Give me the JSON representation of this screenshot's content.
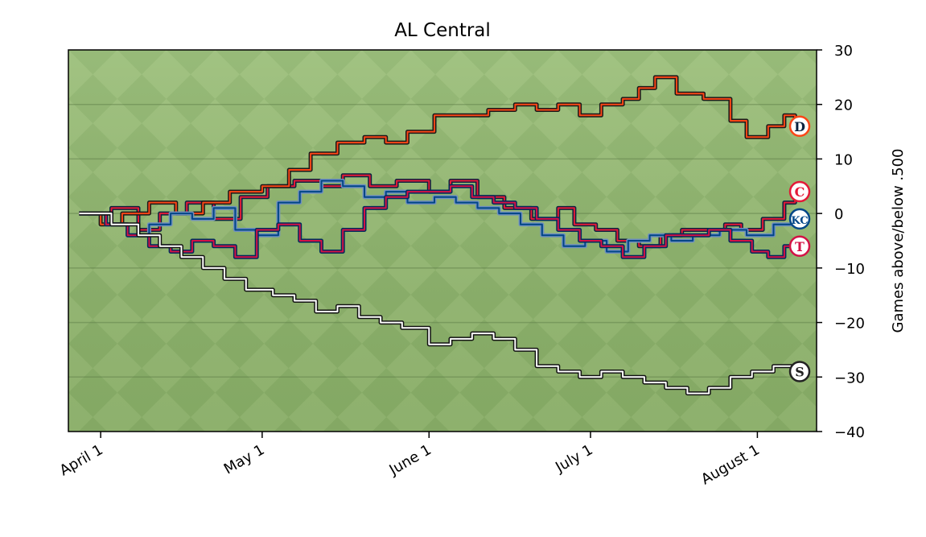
{
  "chart_data": {
    "type": "line",
    "title": "AL Central",
    "xlabel": "",
    "ylabel": "Games above/below .500",
    "ylim": [
      -40,
      30
    ],
    "xlim": [
      "2024-03-26",
      "2024-08-12"
    ],
    "y_axis_side": "right",
    "grid": "horizontal",
    "background": "outfield-grass",
    "legend": "none",
    "x_ticks": [
      {
        "date": "2024-04-01",
        "label": "April  1"
      },
      {
        "date": "2024-05-01",
        "label": "May  1"
      },
      {
        "date": "2024-06-01",
        "label": "June  1"
      },
      {
        "date": "2024-07-01",
        "label": "July  1"
      },
      {
        "date": "2024-08-01",
        "label": "August  1"
      }
    ],
    "y_ticks": [
      30,
      20,
      10,
      0,
      -10,
      -20,
      -30,
      -40
    ],
    "y_tick_labels": [
      "30",
      "20",
      "10",
      "0",
      "−10",
      "−20",
      "−30",
      "−40"
    ],
    "series": [
      {
        "team": "CLE",
        "logo_text": "C",
        "color": "#e31937",
        "outline": "#0c2340",
        "points": [
          [
            "2024-03-28",
            0
          ],
          [
            "2024-04-03",
            1
          ],
          [
            "2024-04-08",
            -3
          ],
          [
            "2024-04-12",
            0
          ],
          [
            "2024-04-17",
            2
          ],
          [
            "2024-04-22",
            -1
          ],
          [
            "2024-04-27",
            3
          ],
          [
            "2024-05-02",
            5
          ],
          [
            "2024-05-07",
            6
          ],
          [
            "2024-05-12",
            5
          ],
          [
            "2024-05-16",
            7
          ],
          [
            "2024-05-21",
            5
          ],
          [
            "2024-05-26",
            6
          ],
          [
            "2024-06-01",
            4
          ],
          [
            "2024-06-05",
            6
          ],
          [
            "2024-06-10",
            3
          ],
          [
            "2024-06-15",
            1
          ],
          [
            "2024-06-20",
            -1
          ],
          [
            "2024-06-25",
            1
          ],
          [
            "2024-06-28",
            -2
          ],
          [
            "2024-07-02",
            -3
          ],
          [
            "2024-07-06",
            -5
          ],
          [
            "2024-07-10",
            -6
          ],
          [
            "2024-07-14",
            -4
          ],
          [
            "2024-07-18",
            -3
          ],
          [
            "2024-07-22",
            -3
          ],
          [
            "2024-07-26",
            -2
          ],
          [
            "2024-07-29",
            -3
          ],
          [
            "2024-08-02",
            -1
          ],
          [
            "2024-08-06",
            2
          ],
          [
            "2024-08-08",
            4
          ]
        ]
      },
      {
        "team": "DET",
        "logo_text": "D",
        "color": "#fa4616",
        "outline": "#1a1a1a",
        "points": [
          [
            "2024-03-28",
            0
          ],
          [
            "2024-04-01",
            -2
          ],
          [
            "2024-04-05",
            0
          ],
          [
            "2024-04-10",
            2
          ],
          [
            "2024-04-15",
            0
          ],
          [
            "2024-04-20",
            2
          ],
          [
            "2024-04-25",
            4
          ],
          [
            "2024-05-01",
            5
          ],
          [
            "2024-05-06",
            8
          ],
          [
            "2024-05-10",
            11
          ],
          [
            "2024-05-15",
            13
          ],
          [
            "2024-05-20",
            14
          ],
          [
            "2024-05-24",
            13
          ],
          [
            "2024-05-28",
            15
          ],
          [
            "2024-06-02",
            18
          ],
          [
            "2024-06-07",
            18
          ],
          [
            "2024-06-12",
            19
          ],
          [
            "2024-06-17",
            20
          ],
          [
            "2024-06-21",
            19
          ],
          [
            "2024-06-25",
            20
          ],
          [
            "2024-06-29",
            18
          ],
          [
            "2024-07-03",
            20
          ],
          [
            "2024-07-07",
            21
          ],
          [
            "2024-07-10",
            23
          ],
          [
            "2024-07-13",
            25
          ],
          [
            "2024-07-17",
            22
          ],
          [
            "2024-07-22",
            21
          ],
          [
            "2024-07-27",
            17
          ],
          [
            "2024-07-30",
            14
          ],
          [
            "2024-08-03",
            16
          ],
          [
            "2024-08-06",
            18
          ],
          [
            "2024-08-08",
            16
          ]
        ]
      },
      {
        "team": "KC",
        "logo_text": "KC",
        "color": "#004687",
        "outline": "#6f8fbf",
        "points": [
          [
            "2024-03-28",
            0
          ],
          [
            "2024-04-02",
            -2
          ],
          [
            "2024-04-06",
            -4
          ],
          [
            "2024-04-10",
            -2
          ],
          [
            "2024-04-14",
            0
          ],
          [
            "2024-04-18",
            -1
          ],
          [
            "2024-04-22",
            1
          ],
          [
            "2024-04-26",
            -3
          ],
          [
            "2024-04-30",
            -4
          ],
          [
            "2024-05-04",
            2
          ],
          [
            "2024-05-08",
            4
          ],
          [
            "2024-05-12",
            6
          ],
          [
            "2024-05-16",
            5
          ],
          [
            "2024-05-20",
            3
          ],
          [
            "2024-05-24",
            4
          ],
          [
            "2024-05-28",
            2
          ],
          [
            "2024-06-02",
            3
          ],
          [
            "2024-06-06",
            2
          ],
          [
            "2024-06-10",
            1
          ],
          [
            "2024-06-14",
            0
          ],
          [
            "2024-06-18",
            -2
          ],
          [
            "2024-06-22",
            -4
          ],
          [
            "2024-06-26",
            -6
          ],
          [
            "2024-06-30",
            -5
          ],
          [
            "2024-07-04",
            -7
          ],
          [
            "2024-07-08",
            -5
          ],
          [
            "2024-07-12",
            -4
          ],
          [
            "2024-07-16",
            -5
          ],
          [
            "2024-07-20",
            -4
          ],
          [
            "2024-07-25",
            -3
          ],
          [
            "2024-07-30",
            -4
          ],
          [
            "2024-08-04",
            -2
          ],
          [
            "2024-08-08",
            -1
          ]
        ]
      },
      {
        "team": "MIN",
        "logo_text": "T",
        "color": "#d31145",
        "outline": "#002b5c",
        "points": [
          [
            "2024-03-28",
            0
          ],
          [
            "2024-04-02",
            -2
          ],
          [
            "2024-04-06",
            -4
          ],
          [
            "2024-04-10",
            -6
          ],
          [
            "2024-04-14",
            -7
          ],
          [
            "2024-04-18",
            -5
          ],
          [
            "2024-04-22",
            -6
          ],
          [
            "2024-04-26",
            -8
          ],
          [
            "2024-04-30",
            -3
          ],
          [
            "2024-05-04",
            -2
          ],
          [
            "2024-05-08",
            -5
          ],
          [
            "2024-05-12",
            -7
          ],
          [
            "2024-05-16",
            -3
          ],
          [
            "2024-05-20",
            1
          ],
          [
            "2024-05-24",
            3
          ],
          [
            "2024-05-28",
            4
          ],
          [
            "2024-06-01",
            4
          ],
          [
            "2024-06-05",
            5
          ],
          [
            "2024-06-09",
            3
          ],
          [
            "2024-06-13",
            2
          ],
          [
            "2024-06-17",
            1
          ],
          [
            "2024-06-21",
            -1
          ],
          [
            "2024-06-25",
            -3
          ],
          [
            "2024-06-29",
            -5
          ],
          [
            "2024-07-03",
            -6
          ],
          [
            "2024-07-07",
            -8
          ],
          [
            "2024-07-11",
            -6
          ],
          [
            "2024-07-15",
            -4
          ],
          [
            "2024-07-19",
            -4
          ],
          [
            "2024-07-23",
            -3
          ],
          [
            "2024-07-27",
            -5
          ],
          [
            "2024-07-31",
            -7
          ],
          [
            "2024-08-03",
            -8
          ],
          [
            "2024-08-06",
            -6
          ],
          [
            "2024-08-08",
            -6
          ]
        ]
      },
      {
        "team": "CWS",
        "logo_text": "S",
        "color": "#ffffff",
        "outline": "#111111",
        "points": [
          [
            "2024-03-28",
            0
          ],
          [
            "2024-04-03",
            -2
          ],
          [
            "2024-04-08",
            -4
          ],
          [
            "2024-04-12",
            -6
          ],
          [
            "2024-04-16",
            -8
          ],
          [
            "2024-04-20",
            -10
          ],
          [
            "2024-04-24",
            -12
          ],
          [
            "2024-04-28",
            -14
          ],
          [
            "2024-05-03",
            -15
          ],
          [
            "2024-05-07",
            -16
          ],
          [
            "2024-05-11",
            -18
          ],
          [
            "2024-05-15",
            -17
          ],
          [
            "2024-05-19",
            -19
          ],
          [
            "2024-05-23",
            -20
          ],
          [
            "2024-05-27",
            -21
          ],
          [
            "2024-06-01",
            -24
          ],
          [
            "2024-06-05",
            -23
          ],
          [
            "2024-06-09",
            -22
          ],
          [
            "2024-06-13",
            -23
          ],
          [
            "2024-06-17",
            -25
          ],
          [
            "2024-06-21",
            -28
          ],
          [
            "2024-06-25",
            -29
          ],
          [
            "2024-06-29",
            -30
          ],
          [
            "2024-07-03",
            -29
          ],
          [
            "2024-07-07",
            -30
          ],
          [
            "2024-07-11",
            -31
          ],
          [
            "2024-07-15",
            -32
          ],
          [
            "2024-07-19",
            -33
          ],
          [
            "2024-07-23",
            -32
          ],
          [
            "2024-07-27",
            -30
          ],
          [
            "2024-07-31",
            -29
          ],
          [
            "2024-08-04",
            -28
          ],
          [
            "2024-08-08",
            -29
          ]
        ]
      }
    ]
  }
}
